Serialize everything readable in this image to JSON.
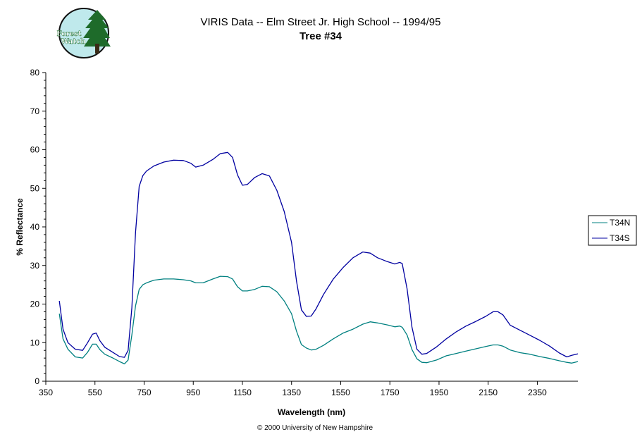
{
  "logo": {
    "line1": "Forest",
    "line2": "Watch"
  },
  "footer": "© 2000 University of New Hampshire",
  "chart_data": {
    "type": "line",
    "title": "VIRIS Data -- Elm Street Jr. High School -- 1994/95",
    "subtitle": "Tree #34",
    "xlabel": "Wavelength (nm)",
    "ylabel": "% Reflectance",
    "xlim": [
      350,
      2515
    ],
    "ylim": [
      0,
      80
    ],
    "xticks": [
      350,
      550,
      750,
      950,
      1150,
      1350,
      1550,
      1750,
      1950,
      2150,
      2350
    ],
    "yticks": [
      0,
      10,
      20,
      30,
      40,
      50,
      60,
      70,
      80
    ],
    "grid": false,
    "legend": "right",
    "x": [
      405,
      420,
      440,
      470,
      500,
      520,
      540,
      555,
      570,
      590,
      620,
      650,
      670,
      685,
      700,
      715,
      730,
      745,
      760,
      790,
      830,
      870,
      910,
      940,
      960,
      990,
      1030,
      1060,
      1090,
      1110,
      1130,
      1150,
      1170,
      1200,
      1230,
      1260,
      1290,
      1320,
      1350,
      1370,
      1390,
      1410,
      1430,
      1450,
      1480,
      1520,
      1560,
      1600,
      1640,
      1670,
      1700,
      1740,
      1770,
      1790,
      1800,
      1820,
      1840,
      1860,
      1880,
      1900,
      1940,
      1980,
      2020,
      2060,
      2100,
      2140,
      2170,
      2190,
      2210,
      2240,
      2280,
      2320,
      2360,
      2400,
      2440,
      2470,
      2490,
      2515
    ],
    "series": [
      {
        "name": "T34N",
        "color": "#008080",
        "values": [
          17.5,
          11,
          8.3,
          6.3,
          6,
          7.5,
          9.6,
          9.6,
          8.2,
          7,
          6.1,
          5.1,
          4.5,
          5.5,
          12,
          19.5,
          23.8,
          25,
          25.5,
          26.2,
          26.5,
          26.5,
          26.3,
          26,
          25.5,
          25.5,
          26.5,
          27.2,
          27.1,
          26.5,
          24.5,
          23.4,
          23.4,
          23.8,
          24.6,
          24.5,
          23.2,
          20.8,
          17.5,
          13,
          9.5,
          8.6,
          8.1,
          8.3,
          9.3,
          11,
          12.5,
          13.5,
          14.8,
          15.4,
          15.1,
          14.6,
          14.1,
          14.3,
          14,
          12,
          8.2,
          5.8,
          4.9,
          4.8,
          5.5,
          6.6,
          7.2,
          7.8,
          8.4,
          9,
          9.4,
          9.4,
          9.1,
          8.1,
          7.4,
          7,
          6.4,
          5.9,
          5.3,
          4.9,
          4.7,
          5.1
        ]
      },
      {
        "name": "T34S",
        "color": "#0000a0",
        "values": [
          20.8,
          13.5,
          10,
          8.3,
          8,
          10,
          12.2,
          12.5,
          10.5,
          8.8,
          7.6,
          6.4,
          6.2,
          8,
          19,
          38.5,
          50.5,
          53.3,
          54.5,
          55.8,
          56.8,
          57.3,
          57.2,
          56.5,
          55.5,
          56,
          57.5,
          59,
          59.3,
          58,
          53.5,
          50.8,
          51,
          52.8,
          53.8,
          53.2,
          49.5,
          44,
          36,
          26,
          18.5,
          16.8,
          16.9,
          18.8,
          22.5,
          26.5,
          29.5,
          32,
          33.5,
          33.2,
          32,
          31,
          30.4,
          30.8,
          30.5,
          24,
          14,
          8.3,
          7,
          7.2,
          8.9,
          11,
          12.8,
          14.3,
          15.5,
          16.8,
          18,
          18,
          17.2,
          14.5,
          13.2,
          11.9,
          10.6,
          9.1,
          7.3,
          6.3,
          6.7,
          7.1
        ]
      }
    ]
  }
}
